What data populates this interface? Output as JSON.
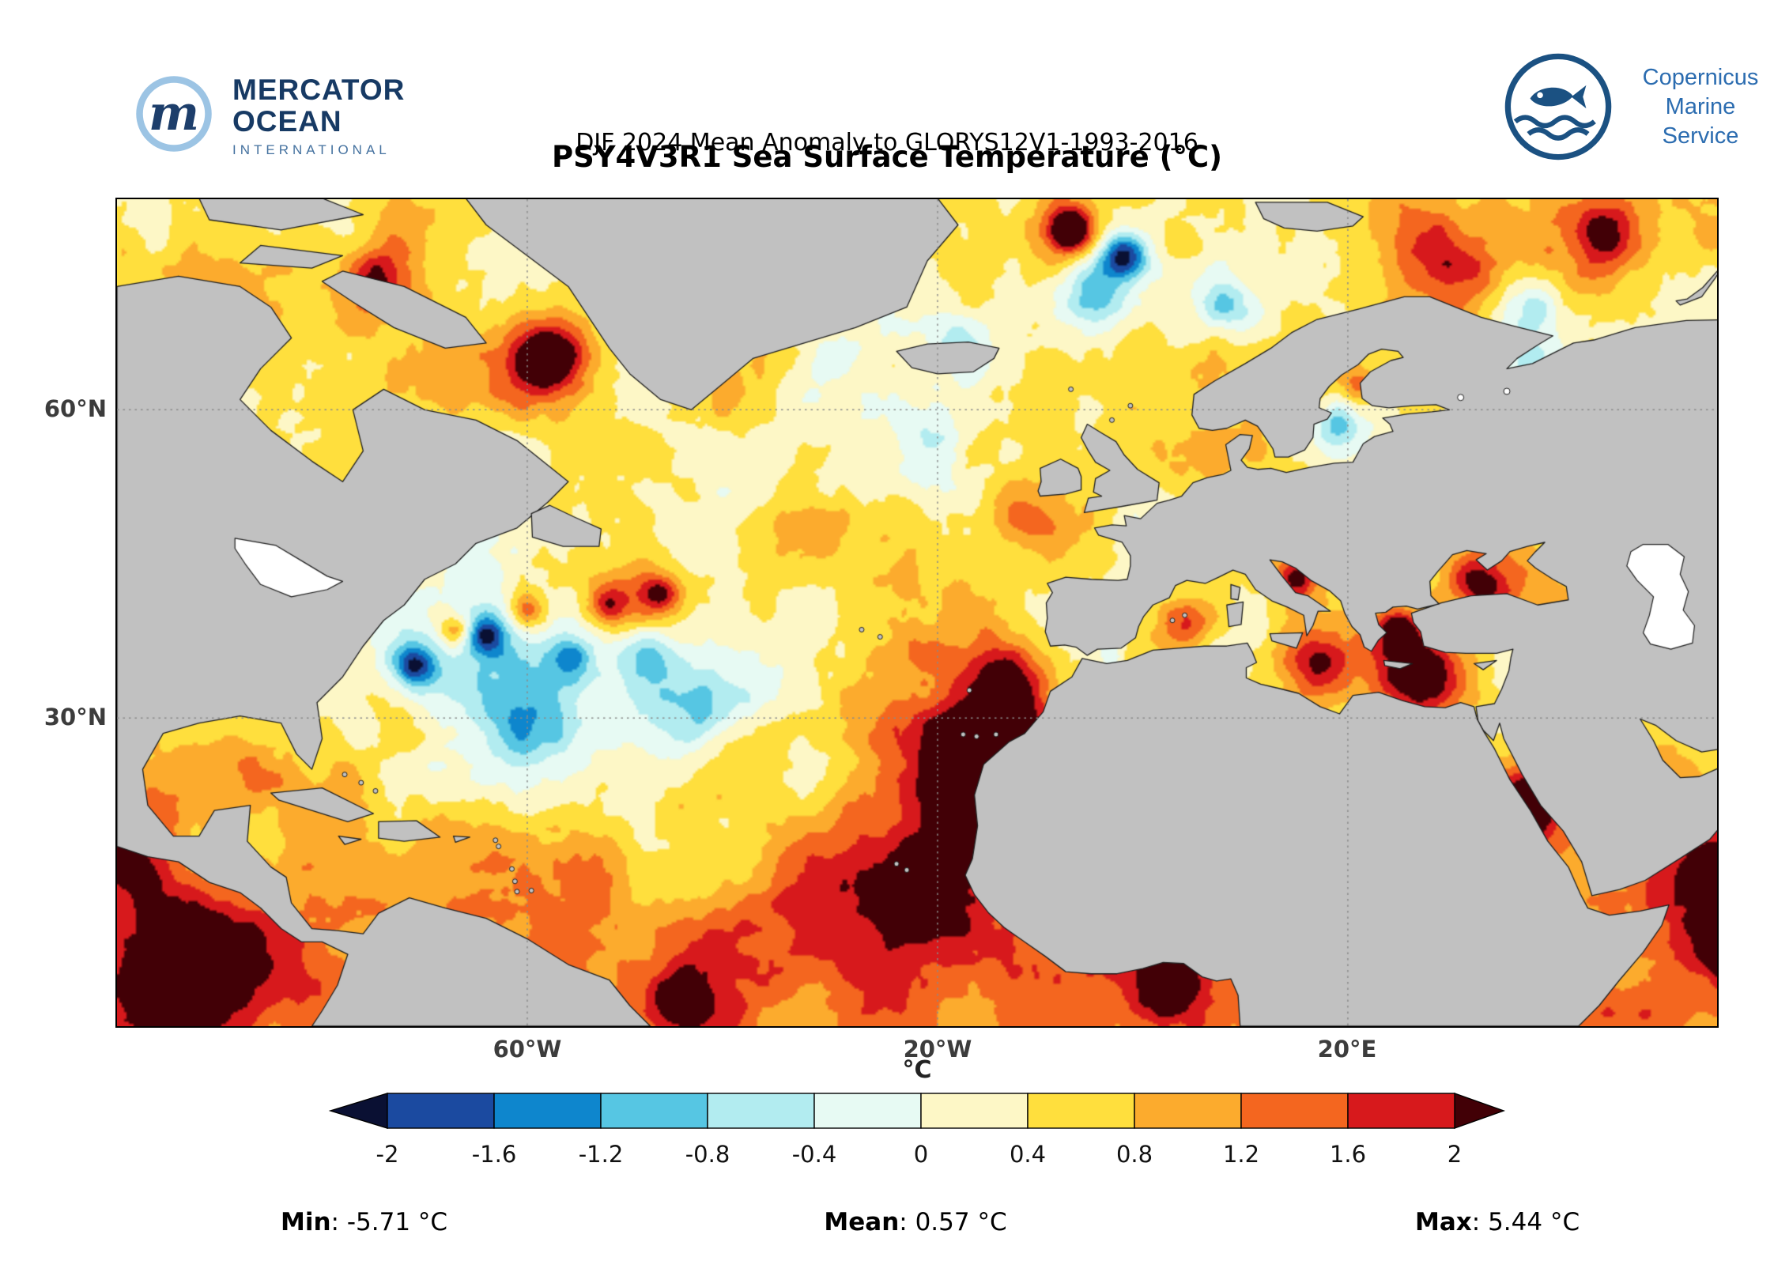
{
  "header": {
    "logo_left": {
      "line1": "MERCATOR",
      "line2": "OCEAN",
      "line3": "INTERNATIONAL"
    },
    "logo_right": {
      "line1": "Copernicus",
      "line2": "Marine Service"
    },
    "subtitle": "DJF 2024 Mean Anomaly to GLORYS12V1-1993-2016",
    "title": "PSY4V3R1 Sea Surface Temperature (°C)"
  },
  "chart_data": {
    "type": "heatmap",
    "title": "PSY4V3R1 Sea Surface Temperature (°C)",
    "subtitle": "DJF 2024 Mean Anomaly to GLORYS12V1-1993-2016",
    "variable": "Sea Surface Temperature anomaly",
    "units": "°C",
    "region": {
      "lon_min": -100,
      "lon_max": 56,
      "lat_min": 0,
      "lat_max": 80.5
    },
    "x_axis": {
      "ticks": [
        "60°W",
        "20°W",
        "20°E"
      ],
      "tick_lons": [
        -60,
        -20,
        20
      ]
    },
    "y_axis": {
      "ticks": [
        "60°N",
        "30°N"
      ],
      "tick_lats": [
        60,
        30
      ]
    },
    "colorbar": {
      "label": "°C",
      "tick_labels": [
        "-2",
        "-1.6",
        "-1.2",
        "-0.8",
        "-0.4",
        "0",
        "0.4",
        "0.8",
        "1.2",
        "1.6",
        "2"
      ],
      "levels": [
        -2,
        -1.6,
        -1.2,
        -0.8,
        -0.4,
        0,
        0.4,
        0.8,
        1.2,
        1.6,
        2
      ],
      "colors": [
        "#1b4aa0",
        "#0e86cd",
        "#56c6e3",
        "#b2ecf0",
        "#e7faf3",
        "#fdf7c6",
        "#ffdf3d",
        "#fcab2d",
        "#f4661f",
        "#d7191c"
      ],
      "under_color": "#0a1033",
      "over_color": "#420006",
      "extend": "both"
    },
    "stats": {
      "min": -5.71,
      "mean": 0.57,
      "max": 5.44,
      "units": "°C"
    },
    "land_color": "#c1c1c1",
    "no_data_color": "#ffffff",
    "grid": true
  },
  "footer": {
    "min_label": "Min",
    "min_rest": ": -5.71 °C",
    "mean_label": "Mean",
    "mean_rest": ": 0.57 °C",
    "max_label": "Max",
    "max_rest": ": 5.44 °C"
  }
}
